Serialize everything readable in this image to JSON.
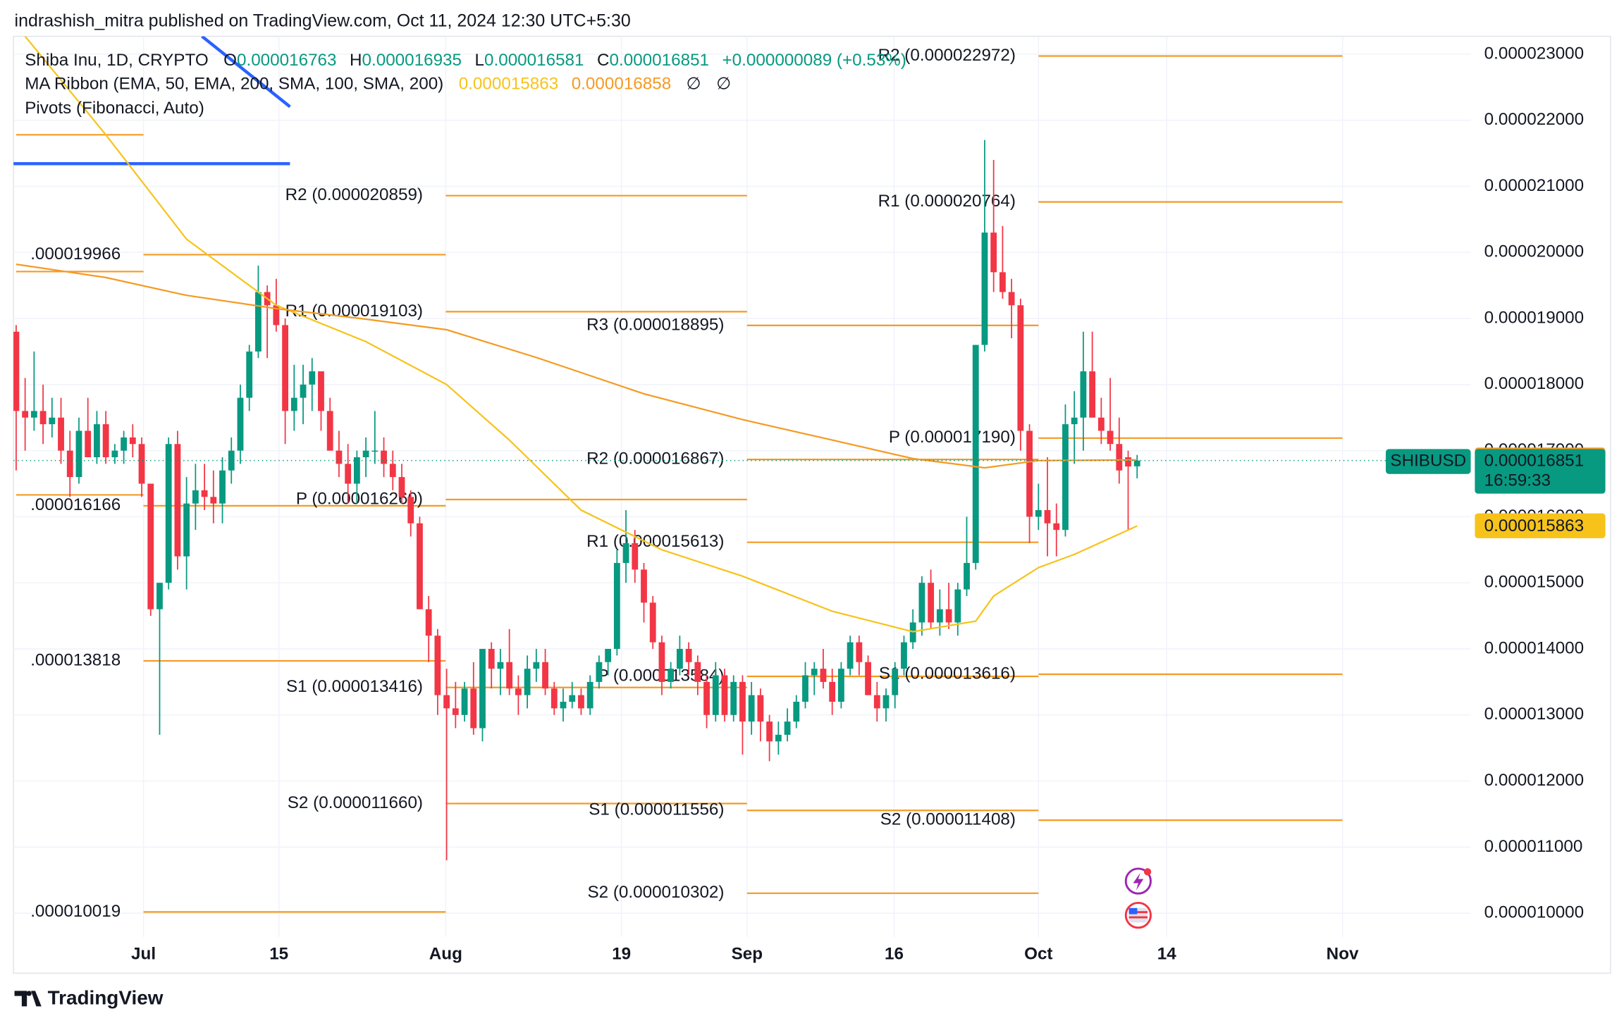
{
  "published": "indrashish_mitra published on TradingView.com, Oct 11, 2024 12:30 UTC+5:30",
  "brand": "TradingView",
  "chart_data": {
    "type": "candlestick",
    "symbol_title": "Shiba Inu, 1D, CRYPTO",
    "ohlc_letters": [
      "O",
      "H",
      "L",
      "C"
    ],
    "change": "+0.000000089 (+0.53%)",
    "ma_title": "MA Ribbon (EMA, 50, EMA, 200, SMA, 100, SMA, 200)",
    "ma_values": [
      1.5863e-05,
      1.6858e-05
    ],
    "ma_na": [
      "∅",
      "∅"
    ],
    "pivots_title": "Pivots (Fibonacci, Auto)",
    "symbol": "SHIBUSD",
    "countdown": "16:59:33",
    "up_color": "#089981",
    "down_color": "#f23645",
    "price_line_color": "#089981",
    "grid": true,
    "xlim": [
      -0.3,
      162.2
    ],
    "ylim": [
      9.64e-06,
      2.327e-05
    ],
    "xticks": [
      {
        "value": 14.2,
        "label": "Jul"
      },
      {
        "value": 29.3,
        "label": "15"
      },
      {
        "value": 47.9,
        "label": "Aug"
      },
      {
        "value": 67.5,
        "label": "19"
      },
      {
        "value": 81.5,
        "label": "Sep"
      },
      {
        "value": 97.9,
        "label": "16"
      },
      {
        "value": 114,
        "label": "Oct"
      },
      {
        "value": 128.3,
        "label": "14"
      },
      {
        "value": 147.9,
        "label": "Nov"
      }
    ],
    "yticks": [
      {
        "value": 1e-05,
        "label": "0.000010000"
      },
      {
        "value": 1.1e-05,
        "label": "0.000011000"
      },
      {
        "value": 1.2e-05,
        "label": "0.000012000"
      },
      {
        "value": 1.3e-05,
        "label": "0.000013000"
      },
      {
        "value": 1.4e-05,
        "label": "0.000014000"
      },
      {
        "value": 1.5e-05,
        "label": "0.000015000"
      },
      {
        "value": 1.6e-05,
        "label": "0.000016000"
      },
      {
        "value": 1.7e-05,
        "label": "0.000017000"
      },
      {
        "value": 1.8e-05,
        "label": "0.000018000"
      },
      {
        "value": 1.9e-05,
        "label": "0.000019000"
      },
      {
        "value": 2e-05,
        "label": "0.000020000"
      },
      {
        "value": 2.1e-05,
        "label": "0.000021000"
      },
      {
        "value": 2.2e-05,
        "label": "0.000022000"
      },
      {
        "value": 2.3e-05,
        "label": "0.000023000"
      }
    ],
    "ohlc": [
      [
        1.88e-05,
        1.89e-05,
        1.67e-05,
        1.76e-05
      ],
      [
        1.76e-05,
        1.81e-05,
        1.7e-05,
        1.75e-05
      ],
      [
        1.75e-05,
        1.85e-05,
        1.73e-05,
        1.76e-05
      ],
      [
        1.76e-05,
        1.8e-05,
        1.71e-05,
        1.74e-05
      ],
      [
        1.74e-05,
        1.78e-05,
        1.72e-05,
        1.75e-05
      ],
      [
        1.75e-05,
        1.78e-05,
        1.68e-05,
        1.7e-05
      ],
      [
        1.7e-05,
        1.73e-05,
        1.63e-05,
        1.66e-05
      ],
      [
        1.66e-05,
        1.75e-05,
        1.65e-05,
        1.73e-05
      ],
      [
        1.73e-05,
        1.78e-05,
        1.69e-05,
        1.69e-05
      ],
      [
        1.69e-05,
        1.76e-05,
        1.68e-05,
        1.74e-05
      ],
      [
        1.74e-05,
        1.76e-05,
        1.68e-05,
        1.69e-05
      ],
      [
        1.69e-05,
        1.71e-05,
        1.68e-05,
        1.7e-05
      ],
      [
        1.7e-05,
        1.73e-05,
        1.68e-05,
        1.72e-05
      ],
      [
        1.72e-05,
        1.74e-05,
        1.69e-05,
        1.71e-05
      ],
      [
        1.71e-05,
        1.72e-05,
        1.63e-05,
        1.65e-05
      ],
      [
        1.65e-05,
        1.65e-05,
        1.45e-05,
        1.46e-05
      ],
      [
        1.46e-05,
        1.5e-05,
        1.27e-05,
        1.5e-05
      ],
      [
        1.5e-05,
        1.72e-05,
        1.49e-05,
        1.71e-05
      ],
      [
        1.71e-05,
        1.73e-05,
        1.52e-05,
        1.54e-05
      ],
      [
        1.54e-05,
        1.66e-05,
        1.49e-05,
        1.62e-05
      ],
      [
        1.62e-05,
        1.68e-05,
        1.58e-05,
        1.64e-05
      ],
      [
        1.64e-05,
        1.68e-05,
        1.61e-05,
        1.63e-05
      ],
      [
        1.63e-05,
        1.67e-05,
        1.59e-05,
        1.62e-05
      ],
      [
        1.62e-05,
        1.69e-05,
        1.59e-05,
        1.67e-05
      ],
      [
        1.67e-05,
        1.72e-05,
        1.65e-05,
        1.7e-05
      ],
      [
        1.7e-05,
        1.8e-05,
        1.68e-05,
        1.78e-05
      ],
      [
        1.78e-05,
        1.86e-05,
        1.76e-05,
        1.85e-05
      ],
      [
        1.85e-05,
        1.98e-05,
        1.84e-05,
        1.94e-05
      ],
      [
        1.94e-05,
        1.95e-05,
        1.84e-05,
        1.92e-05
      ],
      [
        1.92e-05,
        1.96e-05,
        1.88e-05,
        1.89e-05
      ],
      [
        1.89e-05,
        1.9e-05,
        1.71e-05,
        1.76e-05
      ],
      [
        1.76e-05,
        1.83e-05,
        1.73e-05,
        1.78e-05
      ],
      [
        1.78e-05,
        1.83e-05,
        1.74e-05,
        1.8e-05
      ],
      [
        1.8e-05,
        1.84e-05,
        1.76e-05,
        1.82e-05
      ],
      [
        1.82e-05,
        1.82e-05,
        1.73e-05,
        1.76e-05
      ],
      [
        1.76e-05,
        1.78e-05,
        1.7e-05,
        1.7e-05
      ],
      [
        1.7e-05,
        1.73e-05,
        1.66e-05,
        1.68e-05
      ],
      [
        1.68e-05,
        1.71e-05,
        1.62e-05,
        1.65e-05
      ],
      [
        1.65e-05,
        1.7e-05,
        1.62e-05,
        1.69e-05
      ],
      [
        1.69e-05,
        1.72e-05,
        1.66e-05,
        1.7e-05
      ],
      [
        1.7e-05,
        1.76e-05,
        1.68e-05,
        1.7e-05
      ],
      [
        1.7e-05,
        1.72e-05,
        1.66e-05,
        1.68e-05
      ],
      [
        1.68e-05,
        1.7e-05,
        1.64e-05,
        1.66e-05
      ],
      [
        1.66e-05,
        1.68e-05,
        1.62e-05,
        1.63e-05
      ],
      [
        1.63e-05,
        1.64e-05,
        1.57e-05,
        1.59e-05
      ],
      [
        1.59e-05,
        1.6e-05,
        1.46e-05,
        1.46e-05
      ],
      [
        1.46e-05,
        1.48e-05,
        1.38e-05,
        1.42e-05
      ],
      [
        1.42e-05,
        1.43e-05,
        1.3e-05,
        1.33e-05
      ],
      [
        1.33e-05,
        1.37e-05,
        1.08e-05,
        1.31e-05
      ],
      [
        1.31e-05,
        1.35e-05,
        1.28e-05,
        1.3e-05
      ],
      [
        1.3e-05,
        1.35e-05,
        1.29e-05,
        1.34e-05
      ],
      [
        1.34e-05,
        1.38e-05,
        1.27e-05,
        1.28e-05
      ],
      [
        1.28e-05,
        1.4e-05,
        1.26e-05,
        1.4e-05
      ],
      [
        1.4e-05,
        1.41e-05,
        1.34e-05,
        1.37e-05
      ],
      [
        1.37e-05,
        1.4e-05,
        1.33e-05,
        1.38e-05
      ],
      [
        1.38e-05,
        1.43e-05,
        1.33e-05,
        1.34e-05
      ],
      [
        1.34e-05,
        1.36e-05,
        1.3e-05,
        1.33e-05
      ],
      [
        1.33e-05,
        1.39e-05,
        1.31e-05,
        1.37e-05
      ],
      [
        1.37e-05,
        1.4e-05,
        1.35e-05,
        1.38e-05
      ],
      [
        1.38e-05,
        1.4e-05,
        1.33e-05,
        1.34e-05
      ],
      [
        1.34e-05,
        1.35e-05,
        1.3e-05,
        1.31e-05
      ],
      [
        1.31e-05,
        1.34e-05,
        1.29e-05,
        1.32e-05
      ],
      [
        1.32e-05,
        1.35e-05,
        1.31e-05,
        1.33e-05
      ],
      [
        1.33e-05,
        1.34e-05,
        1.3e-05,
        1.31e-05
      ],
      [
        1.31e-05,
        1.36e-05,
        1.3e-05,
        1.35e-05
      ],
      [
        1.35e-05,
        1.39e-05,
        1.34e-05,
        1.38e-05
      ],
      [
        1.38e-05,
        1.4e-05,
        1.36e-05,
        1.4e-05
      ],
      [
        1.4e-05,
        1.55e-05,
        1.39e-05,
        1.53e-05
      ],
      [
        1.53e-05,
        1.61e-05,
        1.5e-05,
        1.56e-05
      ],
      [
        1.56e-05,
        1.58e-05,
        1.5e-05,
        1.52e-05
      ],
      [
        1.52e-05,
        1.53e-05,
        1.44e-05,
        1.47e-05
      ],
      [
        1.47e-05,
        1.48e-05,
        1.4e-05,
        1.41e-05
      ],
      [
        1.41e-05,
        1.42e-05,
        1.33e-05,
        1.35e-05
      ],
      [
        1.35e-05,
        1.38e-05,
        1.34e-05,
        1.37e-05
      ],
      [
        1.37e-05,
        1.42e-05,
        1.36e-05,
        1.4e-05
      ],
      [
        1.4e-05,
        1.41e-05,
        1.36e-05,
        1.38e-05
      ],
      [
        1.38e-05,
        1.39e-05,
        1.33e-05,
        1.35e-05
      ],
      [
        1.35e-05,
        1.36e-05,
        1.28e-05,
        1.3e-05
      ],
      [
        1.3e-05,
        1.38e-05,
        1.29e-05,
        1.36e-05
      ],
      [
        1.36e-05,
        1.37e-05,
        1.29e-05,
        1.3e-05
      ],
      [
        1.3e-05,
        1.36e-05,
        1.29e-05,
        1.35e-05
      ],
      [
        1.35e-05,
        1.36e-05,
        1.24e-05,
        1.29e-05
      ],
      [
        1.29e-05,
        1.35e-05,
        1.27e-05,
        1.33e-05
      ],
      [
        1.33e-05,
        1.34e-05,
        1.26e-05,
        1.29e-05
      ],
      [
        1.29e-05,
        1.3e-05,
        1.23e-05,
        1.26e-05
      ],
      [
        1.26e-05,
        1.29e-05,
        1.24e-05,
        1.27e-05
      ],
      [
        1.27e-05,
        1.31e-05,
        1.26e-05,
        1.29e-05
      ],
      [
        1.29e-05,
        1.33e-05,
        1.28e-05,
        1.32e-05
      ],
      [
        1.32e-05,
        1.38e-05,
        1.31e-05,
        1.36e-05
      ],
      [
        1.36e-05,
        1.38e-05,
        1.33e-05,
        1.37e-05
      ],
      [
        1.37e-05,
        1.4e-05,
        1.34e-05,
        1.35e-05
      ],
      [
        1.35e-05,
        1.37e-05,
        1.3e-05,
        1.32e-05
      ],
      [
        1.32e-05,
        1.38e-05,
        1.31e-05,
        1.37e-05
      ],
      [
        1.37e-05,
        1.42e-05,
        1.36e-05,
        1.41e-05
      ],
      [
        1.41e-05,
        1.42e-05,
        1.36e-05,
        1.38e-05
      ],
      [
        1.38e-05,
        1.39e-05,
        1.33e-05,
        1.33e-05
      ],
      [
        1.33e-05,
        1.35e-05,
        1.29e-05,
        1.31e-05
      ],
      [
        1.31e-05,
        1.34e-05,
        1.29e-05,
        1.33e-05
      ],
      [
        1.33e-05,
        1.38e-05,
        1.31e-05,
        1.37e-05
      ],
      [
        1.37e-05,
        1.42e-05,
        1.36e-05,
        1.41e-05
      ],
      [
        1.41e-05,
        1.46e-05,
        1.4e-05,
        1.44e-05
      ],
      [
        1.44e-05,
        1.51e-05,
        1.42e-05,
        1.5e-05
      ],
      [
        1.5e-05,
        1.52e-05,
        1.43e-05,
        1.44e-05
      ],
      [
        1.44e-05,
        1.49e-05,
        1.42e-05,
        1.46e-05
      ],
      [
        1.46e-05,
        1.5e-05,
        1.43e-05,
        1.44e-05
      ],
      [
        1.44e-05,
        1.5e-05,
        1.42e-05,
        1.49e-05
      ],
      [
        1.49e-05,
        1.6e-05,
        1.48e-05,
        1.53e-05
      ],
      [
        1.53e-05,
        1.86e-05,
        1.52e-05,
        1.86e-05
      ],
      [
        1.86e-05,
        2.17e-05,
        1.85e-05,
        2.03e-05
      ],
      [
        2.03e-05,
        2.14e-05,
        1.94e-05,
        1.97e-05
      ],
      [
        1.97e-05,
        2.04e-05,
        1.93e-05,
        1.94e-05
      ],
      [
        1.94e-05,
        1.96e-05,
        1.87e-05,
        1.92e-05
      ],
      [
        1.92e-05,
        1.93e-05,
        1.7e-05,
        1.73e-05
      ],
      [
        1.73e-05,
        1.74e-05,
        1.56e-05,
        1.6e-05
      ],
      [
        1.6e-05,
        1.65e-05,
        1.58e-05,
        1.61e-05
      ],
      [
        1.61e-05,
        1.69e-05,
        1.54e-05,
        1.59e-05
      ],
      [
        1.59e-05,
        1.62e-05,
        1.54e-05,
        1.58e-05
      ],
      [
        1.58e-05,
        1.77e-05,
        1.57e-05,
        1.74e-05
      ],
      [
        1.74e-05,
        1.79e-05,
        1.68e-05,
        1.75e-05
      ],
      [
        1.75e-05,
        1.88e-05,
        1.7e-05,
        1.82e-05
      ],
      [
        1.82e-05,
        1.88e-05,
        1.75e-05,
        1.75e-05
      ],
      [
        1.75e-05,
        1.78e-05,
        1.71e-05,
        1.73e-05
      ],
      [
        1.73e-05,
        1.81e-05,
        1.7e-05,
        1.71e-05
      ],
      [
        1.71e-05,
        1.75e-05,
        1.65e-05,
        1.67e-05
      ],
      [
        1.69e-05,
        1.7e-05,
        1.58e-05,
        1.676e-05
      ],
      [
        1.6763e-05,
        1.6935e-05,
        1.6581e-05,
        1.6851e-05
      ]
    ],
    "series": [
      {
        "color": "#f7c31a",
        "x": [
          1,
          10,
          19,
          29,
          39,
          48,
          55,
          63,
          72,
          81,
          91,
          100,
          107,
          109,
          114,
          118,
          125
        ],
        "values": [
          2.327e-05,
          2.178e-05,
          2.02e-05,
          1.92e-05,
          1.865e-05,
          1.8e-05,
          1.716e-05,
          1.61e-05,
          1.55e-05,
          1.51e-05,
          1.457e-05,
          1.426e-05,
          1.442e-05,
          1.48e-05,
          1.523e-05,
          1.543e-05,
          1.586e-05
        ]
      },
      {
        "color": "#f59a23",
        "x": [
          0,
          10,
          19,
          29,
          39,
          48,
          58,
          70,
          81,
          91,
          100,
          108,
          114,
          125
        ],
        "values": [
          1.982e-05,
          1.962e-05,
          1.935e-05,
          1.915e-05,
          1.899e-05,
          1.883e-05,
          1.841e-05,
          1.786e-05,
          1.747e-05,
          1.716e-05,
          1.688e-05,
          1.674e-05,
          1.685e-05,
          1.686e-05
        ]
      }
    ],
    "pivot_color": "#f59a23",
    "pivots": [
      {
        "value": 2.178e-05,
        "x": [
          0,
          14.2
        ]
      },
      {
        "value": 1.971e-05,
        "x": [
          0,
          14.2
        ]
      },
      {
        "value": 1.633e-05,
        "x": [
          0,
          14.2
        ]
      },
      {
        "label": ".000019966",
        "value": 1.9966e-05,
        "x": [
          14.2,
          47.9
        ]
      },
      {
        "label": ".000016166",
        "value": 1.6166e-05,
        "x": [
          14.2,
          47.9
        ]
      },
      {
        "label": ".000013818",
        "value": 1.3818e-05,
        "x": [
          14.2,
          47.9
        ]
      },
      {
        "label": ".000010019",
        "value": 1.0019e-05,
        "x": [
          14.2,
          47.9
        ]
      },
      {
        "label": "R2 (0.000020859)",
        "value": 2.0859e-05,
        "x": [
          47.9,
          81.5
        ]
      },
      {
        "label": "R1 (0.000019103)",
        "value": 1.9103e-05,
        "x": [
          47.9,
          81.5
        ]
      },
      {
        "label": "P (0.000016260)",
        "value": 1.626e-05,
        "x": [
          47.9,
          81.5
        ]
      },
      {
        "label": "S1 (0.000013416)",
        "value": 1.3416e-05,
        "x": [
          47.9,
          81.5
        ]
      },
      {
        "label": "S2 (0.000011660)",
        "value": 1.166e-05,
        "x": [
          47.9,
          81.5
        ]
      },
      {
        "label": "R3 (0.000018895)",
        "value": 1.8895e-05,
        "x": [
          81.5,
          114
        ]
      },
      {
        "label": "R2 (0.000016867)",
        "value": 1.6867e-05,
        "x": [
          81.5,
          114
        ]
      },
      {
        "label": "R1 (0.000015613)",
        "value": 1.5613e-05,
        "x": [
          81.5,
          114
        ]
      },
      {
        "label": "P (0.000013584)",
        "value": 1.3584e-05,
        "x": [
          81.5,
          114
        ]
      },
      {
        "label": "S1 (0.000011556)",
        "value": 1.1556e-05,
        "x": [
          81.5,
          114
        ]
      },
      {
        "label": "S2 (0.000010302)",
        "value": 1.0302e-05,
        "x": [
          81.5,
          114
        ]
      },
      {
        "label": "R2 (0.000022972)",
        "value": 2.2972e-05,
        "x": [
          114,
          147.9
        ]
      },
      {
        "label": "R1 (0.000020764)",
        "value": 2.0764e-05,
        "x": [
          114,
          147.9
        ]
      },
      {
        "label": "P (0.000017190)",
        "value": 1.719e-05,
        "x": [
          114,
          147.9
        ]
      },
      {
        "label": "S1 (0.000013616)",
        "value": 1.3616e-05,
        "x": [
          114,
          147.9
        ]
      },
      {
        "label": "S2 (0.000011408)",
        "value": 1.1408e-05,
        "x": [
          114,
          147.9
        ]
      }
    ]
  }
}
